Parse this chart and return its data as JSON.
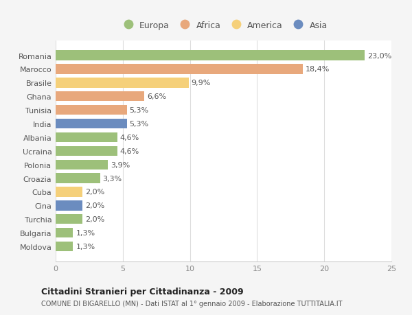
{
  "countries": [
    "Romania",
    "Marocco",
    "Brasile",
    "Ghana",
    "Tunisia",
    "India",
    "Albania",
    "Ucraina",
    "Polonia",
    "Croazia",
    "Cuba",
    "Cina",
    "Turchia",
    "Bulgaria",
    "Moldova"
  ],
  "values": [
    23.0,
    18.4,
    9.9,
    6.6,
    5.3,
    5.3,
    4.6,
    4.6,
    3.9,
    3.3,
    2.0,
    2.0,
    2.0,
    1.3,
    1.3
  ],
  "labels": [
    "23,0%",
    "18,4%",
    "9,9%",
    "6,6%",
    "5,3%",
    "5,3%",
    "4,6%",
    "4,6%",
    "3,9%",
    "3,3%",
    "2,0%",
    "2,0%",
    "2,0%",
    "1,3%",
    "1,3%"
  ],
  "colors": [
    "#9dc07a",
    "#e8a87c",
    "#f5d07a",
    "#e8a87c",
    "#e8a87c",
    "#6b8cbf",
    "#9dc07a",
    "#9dc07a",
    "#9dc07a",
    "#9dc07a",
    "#f5d07a",
    "#6b8cbf",
    "#9dc07a",
    "#9dc07a",
    "#9dc07a"
  ],
  "legend_labels": [
    "Europa",
    "Africa",
    "America",
    "Asia"
  ],
  "legend_colors": [
    "#9dc07a",
    "#e8a87c",
    "#f5d07a",
    "#6b8cbf"
  ],
  "xlim": [
    0,
    25
  ],
  "xticks": [
    0,
    5,
    10,
    15,
    20,
    25
  ],
  "title": "Cittadini Stranieri per Cittadinanza - 2009",
  "subtitle": "COMUNE DI BIGARELLO (MN) - Dati ISTAT al 1° gennaio 2009 - Elaborazione TUTTITALIA.IT",
  "bg_color": "#f5f5f5",
  "bar_bg_color": "#ffffff",
  "label_fontsize": 8,
  "tick_fontsize": 8,
  "bar_height": 0.72
}
